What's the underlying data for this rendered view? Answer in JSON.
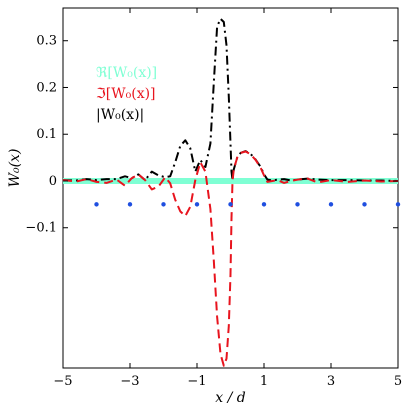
{
  "chart_data": {
    "type": "line",
    "xlabel": "x / d",
    "ylabel": "W₀(x)",
    "xlim": [
      -5,
      5
    ],
    "ylim": [
      -0.4,
      0.37
    ],
    "x_ticks": [
      -5,
      -3,
      -1,
      1,
      3,
      5
    ],
    "x_tick_labels": [
      "−5",
      "−3",
      "−1",
      "1",
      "3",
      "5"
    ],
    "y_ticks": [
      -0.1,
      0,
      0.1,
      0.2,
      0.3
    ],
    "y_tick_labels": [
      "−0.1",
      "0",
      "0.1",
      "0.2",
      "0.3"
    ],
    "grid": false,
    "legend_placement": "top-left",
    "series": [
      {
        "name": "ℜ[W₀(x)]",
        "color": "#7fffd4",
        "style": "solid-thick",
        "x": [
          -5,
          -4,
          -3,
          -2,
          -1,
          0,
          1,
          2,
          3,
          4,
          5
        ],
        "y": [
          0,
          0,
          0,
          0,
          0,
          0,
          0,
          0,
          0,
          0,
          0
        ]
      },
      {
        "name": "ℑ[W₀(x)]",
        "color": "#e8141e",
        "style": "dashed",
        "x": [
          -5,
          -4.6,
          -4.3,
          -4.0,
          -3.7,
          -3.4,
          -3.15,
          -2.95,
          -2.75,
          -2.55,
          -2.35,
          -2.15,
          -1.95,
          -1.8,
          -1.65,
          -1.5,
          -1.35,
          -1.2,
          -1.05,
          -0.9,
          -0.75,
          -0.6,
          -0.5,
          -0.4,
          -0.3,
          -0.2,
          -0.12,
          -0.05,
          0.0,
          0.03,
          0.06,
          0.1,
          0.2,
          0.3,
          0.45,
          0.6,
          0.75,
          0.9,
          1.0,
          1.1,
          1.25,
          1.4,
          1.6,
          1.8,
          2.0,
          2.3,
          2.6,
          3.0,
          3.5,
          4.0,
          4.5,
          5.0
        ],
        "y": [
          0.002,
          -0.001,
          0.004,
          -0.002,
          -0.004,
          0.003,
          -0.01,
          0.006,
          0.014,
          0.002,
          -0.018,
          -0.012,
          0.008,
          -0.005,
          -0.04,
          -0.065,
          -0.075,
          -0.055,
          0.002,
          0.04,
          0.02,
          -0.06,
          -0.17,
          -0.29,
          -0.37,
          -0.395,
          -0.38,
          -0.31,
          -0.2,
          -0.08,
          0.0,
          0.025,
          0.05,
          0.06,
          0.063,
          0.057,
          0.045,
          0.028,
          0.012,
          -0.002,
          0.0,
          0.002,
          -0.004,
          0.0,
          0.003,
          0.005,
          -0.003,
          0.002,
          -0.002,
          0.001,
          -0.001,
          0.0
        ]
      },
      {
        "name": "|W₀(x)|",
        "color": "#000000",
        "style": "dash-dot",
        "x": [
          -5,
          -4.6,
          -4.3,
          -4.0,
          -3.7,
          -3.4,
          -3.15,
          -2.95,
          -2.75,
          -2.55,
          -2.35,
          -2.15,
          -1.95,
          -1.8,
          -1.65,
          -1.5,
          -1.35,
          -1.2,
          -1.05,
          -0.9,
          -0.75,
          -0.6,
          -0.5,
          -0.4,
          -0.3,
          -0.2,
          -0.12,
          -0.05,
          0.0,
          0.03,
          0.06,
          0.1,
          0.2,
          0.3,
          0.45,
          0.6,
          0.75,
          0.9,
          1.0,
          1.1,
          1.25,
          1.4,
          1.6,
          1.8,
          2.0,
          2.3,
          2.6,
          3.0,
          3.5,
          4.0,
          4.5,
          5.0
        ],
        "y": [
          0.002,
          0.001,
          0.004,
          0.002,
          0.004,
          0.004,
          0.01,
          0.006,
          0.014,
          0.002,
          0.02,
          0.012,
          0.008,
          0.01,
          0.04,
          0.075,
          0.087,
          0.07,
          0.02,
          0.045,
          0.03,
          0.08,
          0.21,
          0.33,
          0.347,
          0.34,
          0.29,
          0.18,
          0.08,
          0.02,
          0.002,
          0.025,
          0.05,
          0.06,
          0.064,
          0.058,
          0.046,
          0.03,
          0.014,
          0.003,
          0.001,
          0.003,
          0.004,
          0.001,
          0.003,
          0.005,
          0.003,
          0.002,
          0.002,
          0.001,
          0.001,
          0.0
        ]
      }
    ],
    "markers": {
      "color": "#1f4fe0",
      "x": [
        -4,
        -3,
        -2,
        -1,
        0,
        1,
        2,
        3,
        4,
        5
      ],
      "y": [
        -0.05,
        -0.05,
        -0.05,
        -0.05,
        -0.05,
        -0.05,
        -0.05,
        -0.05,
        -0.05,
        -0.05
      ]
    }
  }
}
